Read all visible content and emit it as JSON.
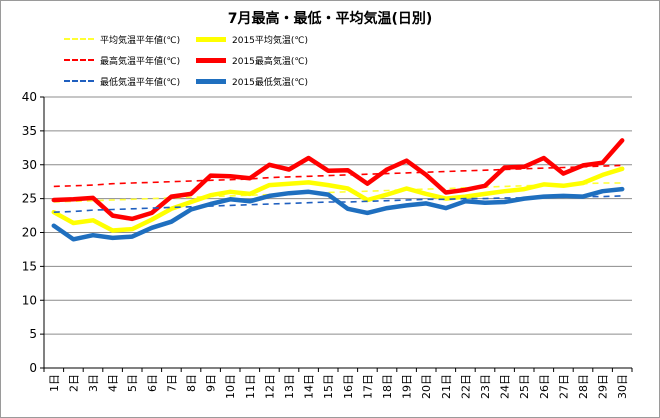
{
  "chart_data": {
    "type": "line",
    "title": "7月最高・最低・平均気温(日別)",
    "xlabel": "",
    "ylabel": "",
    "ylim": [
      0,
      40
    ],
    "yticks": [
      "0",
      "5",
      "10",
      "15",
      "20",
      "25",
      "30",
      "35",
      "40"
    ],
    "categories": [
      "1日",
      "2日",
      "3日",
      "4日",
      "5日",
      "6日",
      "7日",
      "8日",
      "9日",
      "10日",
      "11日",
      "12日",
      "13日",
      "14日",
      "15日",
      "16日",
      "17日",
      "18日",
      "19日",
      "20日",
      "21日",
      "22日",
      "23日",
      "24日",
      "25日",
      "26日",
      "27日",
      "28日",
      "29日",
      "30日"
    ],
    "grid": true,
    "legend_position": "top",
    "series": [
      {
        "name": "平均気温平年値(℃)",
        "color": "#ffff33",
        "style": "dashed",
        "values": [
          24.5,
          24.6,
          24.7,
          24.8,
          24.9,
          25.0,
          25.1,
          25.2,
          25.3,
          25.4,
          25.5,
          25.6,
          25.7,
          25.8,
          25.9,
          26.0,
          26.1,
          26.2,
          26.3,
          26.4,
          26.5,
          26.6,
          26.7,
          26.8,
          26.9,
          27.0,
          27.1,
          27.2,
          27.3,
          27.3
        ]
      },
      {
        "name": "2015平均気温(℃)",
        "color": "#ffff00",
        "style": "solid",
        "values": [
          23.0,
          21.4,
          21.8,
          20.3,
          20.5,
          21.9,
          23.5,
          24.5,
          25.5,
          26.0,
          25.7,
          27.0,
          27.2,
          27.4,
          27.0,
          26.5,
          24.8,
          25.6,
          26.5,
          25.7,
          25.0,
          25.3,
          25.7,
          26.1,
          26.4,
          27.1,
          26.9,
          27.3,
          28.5,
          29.4
        ]
      },
      {
        "name": "最高気温平年値(℃)",
        "color": "#ff0000",
        "style": "dashed",
        "values": [
          26.8,
          26.9,
          27.0,
          27.2,
          27.3,
          27.4,
          27.5,
          27.6,
          27.7,
          27.8,
          27.9,
          28.1,
          28.2,
          28.3,
          28.4,
          28.5,
          28.6,
          28.7,
          28.8,
          28.9,
          29.0,
          29.1,
          29.2,
          29.3,
          29.4,
          29.5,
          29.6,
          29.7,
          29.8,
          29.9
        ]
      },
      {
        "name": "2015最高気温(℃)",
        "color": "#ff0000",
        "style": "solid",
        "values": [
          24.8,
          24.9,
          25.1,
          22.5,
          22.0,
          22.9,
          25.3,
          25.7,
          28.4,
          28.3,
          28.0,
          30.0,
          29.3,
          31.0,
          29.1,
          29.2,
          27.2,
          29.3,
          30.6,
          28.5,
          25.9,
          26.3,
          26.9,
          29.6,
          29.7,
          31.0,
          28.7,
          29.9,
          30.3,
          33.6
        ]
      },
      {
        "name": "最低気温平年値(℃)",
        "color": "#1f5fbf",
        "style": "dashed",
        "values": [
          23.0,
          23.1,
          23.3,
          23.4,
          23.5,
          23.6,
          23.7,
          23.8,
          23.9,
          24.0,
          24.1,
          24.2,
          24.3,
          24.4,
          24.5,
          24.5,
          24.6,
          24.7,
          24.8,
          24.9,
          24.9,
          25.0,
          25.0,
          25.1,
          25.1,
          25.2,
          25.2,
          25.3,
          25.3,
          25.4
        ]
      },
      {
        "name": "2015最低気温(℃)",
        "color": "#1f6fbf",
        "style": "solid",
        "values": [
          21.0,
          19.0,
          19.6,
          19.2,
          19.4,
          20.7,
          21.6,
          23.4,
          24.2,
          24.9,
          24.6,
          25.4,
          25.8,
          26.0,
          25.6,
          23.5,
          22.9,
          23.6,
          24.0,
          24.3,
          23.6,
          24.6,
          24.4,
          24.5,
          25.0,
          25.3,
          25.4,
          25.3,
          26.1,
          26.4
        ]
      }
    ]
  }
}
